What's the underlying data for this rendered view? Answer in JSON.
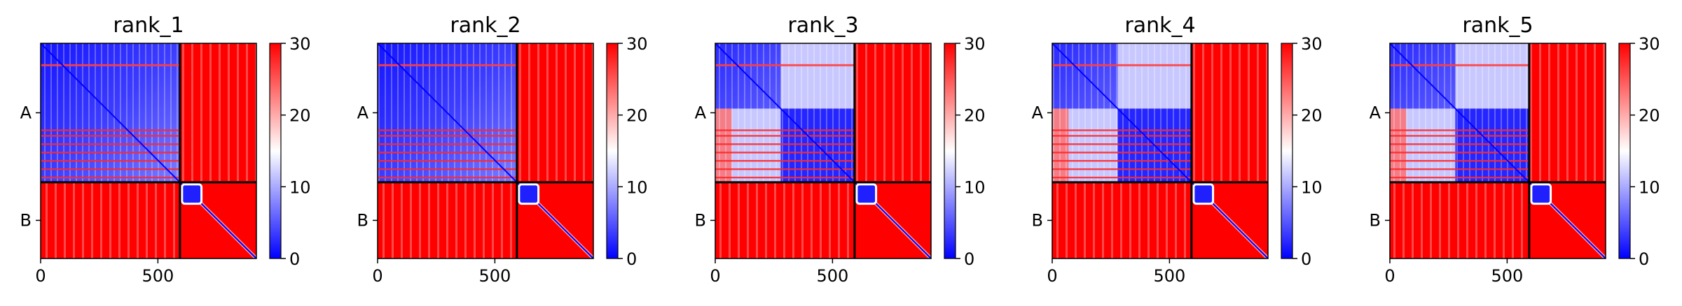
{
  "figure": {
    "background": "#ffffff"
  },
  "chart_data": [
    {
      "type": "heatmap",
      "title": "rank_1",
      "matrix_size": 920,
      "chains": [
        {
          "name": "A",
          "start": 0,
          "end": 594
        },
        {
          "name": "B",
          "start": 594,
          "end": 920
        }
      ],
      "x_ticks": [
        0,
        500
      ],
      "x_tick_labels": [
        "0",
        "500"
      ],
      "y_tick_labels": [
        "A",
        "B"
      ],
      "xlim": [
        0,
        920
      ],
      "colorbar": {
        "vmin": 0,
        "vmax": 30,
        "ticks": [
          0,
          10,
          20,
          30
        ],
        "tick_labels": [
          "0",
          "10",
          "20",
          "30"
        ],
        "colors": [
          "#0000ff",
          "#ffffff",
          "#ff0000"
        ]
      },
      "blocks": {
        "AA": "mostly-low (blue) with a few high (red) horizontal bands",
        "AB": "high (red)",
        "BA": "high (red)",
        "BB": "high (red) with low (blue) diagonal and small low square near start"
      }
    },
    {
      "type": "heatmap",
      "title": "rank_2",
      "matrix_size": 920,
      "chains": [
        {
          "name": "A",
          "start": 0,
          "end": 594
        },
        {
          "name": "B",
          "start": 594,
          "end": 920
        }
      ],
      "x_ticks": [
        0,
        500
      ],
      "x_tick_labels": [
        "0",
        "500"
      ],
      "y_tick_labels": [
        "A",
        "B"
      ],
      "xlim": [
        0,
        920
      ],
      "colorbar": {
        "vmin": 0,
        "vmax": 30,
        "ticks": [
          0,
          10,
          20,
          30
        ],
        "tick_labels": [
          "0",
          "10",
          "20",
          "30"
        ],
        "colors": [
          "#0000ff",
          "#ffffff",
          "#ff0000"
        ]
      },
      "blocks": {
        "AA": "mostly-low (blue) with a few high (red) horizontal bands",
        "AB": "high (red)",
        "BA": "high (red)",
        "BB": "high (red) with low (blue) diagonal and small low square near start"
      }
    },
    {
      "type": "heatmap",
      "title": "rank_3",
      "matrix_size": 920,
      "chains": [
        {
          "name": "A",
          "start": 0,
          "end": 594
        },
        {
          "name": "B",
          "start": 594,
          "end": 920
        }
      ],
      "x_ticks": [
        0,
        500
      ],
      "x_tick_labels": [
        "0",
        "500"
      ],
      "y_tick_labels": [
        "A",
        "B"
      ],
      "xlim": [
        0,
        920
      ],
      "colorbar": {
        "vmin": 0,
        "vmax": 30,
        "ticks": [
          0,
          10,
          20,
          30
        ],
        "tick_labels": [
          "0",
          "10",
          "20",
          "30"
        ],
        "colors": [
          "#0000ff",
          "#ffffff",
          "#ff0000"
        ]
      },
      "blocks": {
        "AA": "two low (blue) sub-domains, lighter off-diagonal region",
        "AB": "high (red)",
        "BA": "high (red)",
        "BB": "high (red) with low (blue) diagonal and small low square near start"
      }
    },
    {
      "type": "heatmap",
      "title": "rank_4",
      "matrix_size": 920,
      "chains": [
        {
          "name": "A",
          "start": 0,
          "end": 594
        },
        {
          "name": "B",
          "start": 594,
          "end": 920
        }
      ],
      "x_ticks": [
        0,
        500
      ],
      "x_tick_labels": [
        "0",
        "500"
      ],
      "y_tick_labels": [
        "A",
        "B"
      ],
      "xlim": [
        0,
        920
      ],
      "colorbar": {
        "vmin": 0,
        "vmax": 30,
        "ticks": [
          0,
          10,
          20,
          30
        ],
        "tick_labels": [
          "0",
          "10",
          "20",
          "30"
        ],
        "colors": [
          "#0000ff",
          "#ffffff",
          "#ff0000"
        ]
      },
      "blocks": {
        "AA": "two low (blue) sub-domains, lighter off-diagonal region",
        "AB": "high (red)",
        "BA": "high (red)",
        "BB": "high (red) with low (blue) diagonal and small low square near start"
      }
    },
    {
      "type": "heatmap",
      "title": "rank_5",
      "matrix_size": 920,
      "chains": [
        {
          "name": "A",
          "start": 0,
          "end": 594
        },
        {
          "name": "B",
          "start": 594,
          "end": 920
        }
      ],
      "x_ticks": [
        0,
        500
      ],
      "x_tick_labels": [
        "0",
        "500"
      ],
      "y_tick_labels": [
        "A",
        "B"
      ],
      "xlim": [
        0,
        920
      ],
      "colorbar": {
        "vmin": 0,
        "vmax": 30,
        "ticks": [
          0,
          10,
          20,
          30
        ],
        "tick_labels": [
          "0",
          "10",
          "20",
          "30"
        ],
        "colors": [
          "#0000ff",
          "#ffffff",
          "#ff0000"
        ]
      },
      "blocks": {
        "AA": "two low (blue) sub-domains, lighter off-diagonal region",
        "AB": "high (red)",
        "BA": "high (red)",
        "BB": "high (red) with low (blue) diagonal and small low square near start"
      }
    }
  ]
}
